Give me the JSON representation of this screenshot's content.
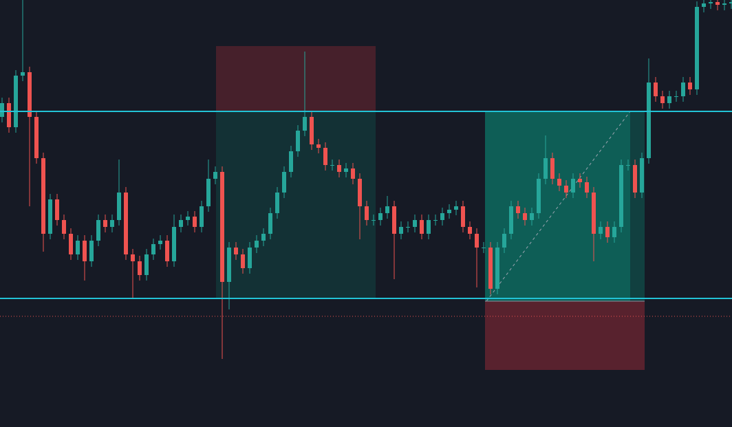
{
  "chart_data": {
    "type": "candlestick",
    "ylim": [
      0,
      621
    ],
    "up_color": "#26a69a",
    "down_color": "#ef5350",
    "open": [
      451,
      471,
      436,
      511,
      516,
      451,
      391,
      281,
      331,
      301,
      281,
      251,
      271,
      241,
      271,
      301,
      291,
      301,
      341,
      251,
      241,
      221,
      251,
      266,
      271,
      241,
      291,
      301,
      306,
      291,
      321,
      361,
      371,
      211,
      261,
      251,
      231,
      261,
      271,
      281,
      311,
      341,
      371,
      401,
      431,
      451,
      411,
      406,
      381,
      381,
      371,
      376,
      361,
      321,
      301,
      301,
      311,
      321,
      281,
      291,
      291,
      301,
      281,
      301,
      301,
      311,
      316,
      321,
      291,
      281,
      261,
      261,
      201,
      261,
      281,
      321,
      311,
      301,
      311,
      361,
      391,
      361,
      351,
      341,
      361,
      356,
      341,
      281,
      291,
      276,
      291,
      381,
      381,
      341,
      391,
      501,
      481,
      471,
      481,
      481,
      501,
      491,
      611,
      616,
      618,
      614,
      616
    ],
    "high": [
      479,
      479,
      519,
      621,
      524,
      459,
      399,
      339,
      339,
      309,
      289,
      279,
      279,
      279,
      309,
      309,
      309,
      389,
      349,
      259,
      249,
      259,
      274,
      279,
      279,
      309,
      309,
      314,
      314,
      329,
      389,
      379,
      379,
      269,
      269,
      259,
      269,
      279,
      289,
      319,
      349,
      379,
      409,
      439,
      546,
      459,
      419,
      414,
      389,
      389,
      384,
      384,
      369,
      329,
      309,
      319,
      336,
      329,
      299,
      299,
      309,
      309,
      309,
      309,
      319,
      324,
      329,
      329,
      299,
      289,
      269,
      269,
      269,
      289,
      329,
      329,
      319,
      319,
      369,
      424,
      399,
      369,
      359,
      369,
      369,
      364,
      349,
      299,
      299,
      299,
      389,
      389,
      389,
      399,
      536,
      509,
      489,
      489,
      489,
      509,
      509,
      619,
      621,
      621,
      621,
      621,
      621
    ],
    "low": [
      443,
      428,
      428,
      503,
      321,
      383,
      255,
      273,
      293,
      273,
      243,
      243,
      213,
      233,
      263,
      283,
      283,
      293,
      243,
      187,
      213,
      213,
      243,
      258,
      233,
      233,
      283,
      293,
      283,
      283,
      313,
      353,
      99,
      171,
      243,
      223,
      223,
      253,
      263,
      273,
      303,
      333,
      363,
      393,
      423,
      403,
      398,
      373,
      373,
      363,
      363,
      353,
      273,
      293,
      293,
      293,
      303,
      215,
      273,
      283,
      283,
      273,
      273,
      293,
      293,
      303,
      308,
      283,
      273,
      203,
      253,
      193,
      193,
      253,
      273,
      303,
      293,
      293,
      303,
      353,
      353,
      343,
      333,
      333,
      348,
      333,
      241,
      273,
      268,
      268,
      283,
      373,
      333,
      333,
      383,
      473,
      463,
      463,
      473,
      473,
      483,
      483,
      603,
      608,
      606,
      606,
      608
    ],
    "close": [
      471,
      436,
      511,
      516,
      451,
      391,
      281,
      331,
      301,
      281,
      251,
      271,
      241,
      271,
      301,
      291,
      301,
      341,
      251,
      241,
      221,
      251,
      266,
      271,
      241,
      291,
      301,
      306,
      291,
      321,
      361,
      371,
      211,
      261,
      251,
      231,
      261,
      271,
      281,
      311,
      341,
      371,
      401,
      431,
      451,
      411,
      406,
      381,
      381,
      371,
      376,
      361,
      321,
      301,
      301,
      311,
      321,
      281,
      291,
      291,
      301,
      281,
      301,
      301,
      311,
      316,
      321,
      291,
      281,
      261,
      261,
      201,
      261,
      281,
      321,
      311,
      301,
      311,
      361,
      391,
      361,
      351,
      341,
      361,
      356,
      341,
      281,
      291,
      276,
      291,
      381,
      381,
      341,
      391,
      501,
      481,
      471,
      481,
      481,
      501,
      491,
      611,
      616,
      618,
      614,
      616,
      618
    ],
    "levels": [
      459,
      187
    ],
    "dotted_level": 161,
    "positions": [
      {
        "entry": 459,
        "stop": 554,
        "target": 187
      },
      {
        "entry": 183,
        "stop": 83,
        "target": 459
      }
    ]
  }
}
